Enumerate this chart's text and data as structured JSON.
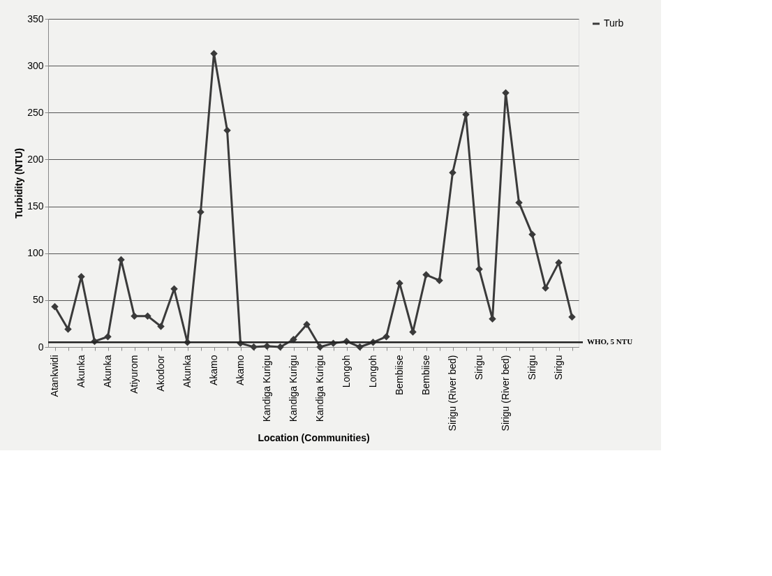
{
  "chart_data": {
    "type": "line",
    "xlabel": "Location (Communities)",
    "ylabel": "Turbidity (NTU)",
    "categories": [
      "Atankwidi",
      null,
      "Akunka",
      null,
      "Akunka",
      null,
      "Atiyurom",
      null,
      "Akodoor",
      null,
      "Akunka",
      null,
      "Akamo",
      null,
      "Akamo",
      null,
      "Kandiga Kurigu",
      null,
      "Kandiga Kurigu",
      null,
      "Kandiga Kurigu",
      null,
      "Longoh",
      null,
      "Longoh",
      null,
      "Bembiise",
      null,
      "Bembiise",
      null,
      "Sirigu (River bed)",
      null,
      "Sirigu",
      null,
      "Sirigu (River bed)",
      null,
      "Sirigu",
      null,
      "Sirigu",
      null
    ],
    "series": [
      {
        "name": "Turb",
        "color": "#3a3a3a",
        "values": [
          43,
          19,
          75,
          6,
          11,
          93,
          33,
          33,
          22,
          62,
          5,
          144,
          313,
          231,
          4,
          0,
          1,
          0,
          8,
          24,
          0,
          4,
          6,
          0,
          5,
          11,
          68,
          16,
          77,
          71,
          186,
          248,
          83,
          30,
          271,
          154,
          120,
          63,
          90,
          32
        ]
      }
    ],
    "ylim": [
      0,
      350
    ],
    "yticks": [
      0,
      50,
      100,
      150,
      200,
      250,
      300,
      350
    ],
    "grid": "y",
    "legend": "right",
    "marker": "diamond",
    "line_style": "solid",
    "ref_lines": [
      {
        "axis": "y",
        "value": 5,
        "label": "WHO, 5 NTU",
        "color": "#222222"
      }
    ]
  }
}
